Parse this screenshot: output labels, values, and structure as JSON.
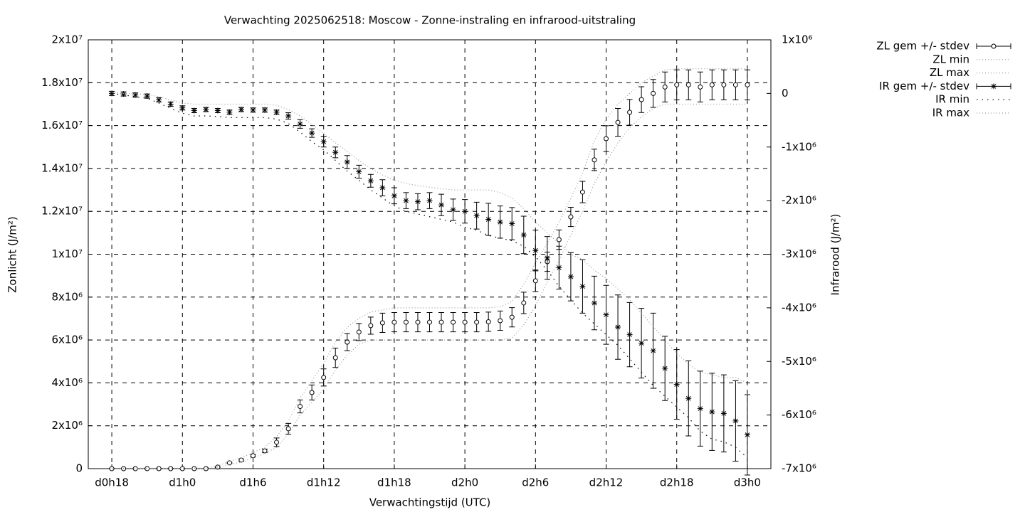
{
  "chart_data": {
    "type": "errorbar-line",
    "title": "Verwachting 2025062518: Moscow - Zonne-instraling en infrarood-uitstraling",
    "xlabel": "Verwachtingstijd (UTC)",
    "ylabel": "Zonlicht (J/m²)",
    "y2label": "Infrarood (J/m²)",
    "grid": true,
    "legend": "outside-top-right",
    "x": [
      0,
      1,
      2,
      3,
      4,
      5,
      6,
      7,
      8,
      9,
      10,
      11,
      12,
      13,
      14,
      15,
      16,
      17,
      18,
      19,
      20,
      21,
      22,
      23,
      24,
      25,
      26,
      27,
      28,
      29,
      30,
      31,
      32,
      33,
      34,
      35,
      36,
      37,
      38,
      39,
      40,
      41,
      42,
      43,
      44,
      45,
      46,
      47,
      48,
      49,
      50,
      51,
      52,
      53,
      54
    ],
    "xlim": [
      -2,
      56
    ],
    "xticks": [
      {
        "value": 0,
        "label": "d0h18"
      },
      {
        "value": 6,
        "label": "d1h0"
      },
      {
        "value": 12,
        "label": "d1h6"
      },
      {
        "value": 18,
        "label": "d1h12"
      },
      {
        "value": 24,
        "label": "d1h18"
      },
      {
        "value": 30,
        "label": "d2h0"
      },
      {
        "value": 36,
        "label": "d2h6"
      },
      {
        "value": 42,
        "label": "d2h12"
      },
      {
        "value": 48,
        "label": "d2h18"
      },
      {
        "value": 54,
        "label": "d3h0"
      }
    ],
    "ylim": [
      0,
      20000000.0
    ],
    "yticks": [
      0,
      {
        "value": 2000000.0,
        "label": "2x10⁶"
      },
      {
        "value": 4000000.0,
        "label": "4x10⁶"
      },
      {
        "value": 6000000.0,
        "label": "6x10⁶"
      },
      {
        "value": 8000000.0,
        "label": "8x10⁶"
      },
      {
        "value": 10000000.0,
        "label": "1x10⁷"
      },
      {
        "value": 12000000.0,
        "label": "1.2x10⁷"
      },
      {
        "value": 14000000.0,
        "label": "1.4x10⁷"
      },
      {
        "value": 16000000.0,
        "label": "1.6x10⁷"
      },
      {
        "value": 18000000.0,
        "label": "1.8x10⁷"
      },
      {
        "value": 20000000.0,
        "label": "2x10⁷"
      }
    ],
    "y2lim": [
      -7000000.0,
      1000000.0
    ],
    "y2ticks": [
      {
        "value": -7000000.0,
        "label": "-7x10⁶"
      },
      {
        "value": -6000000.0,
        "label": "-6x10⁶"
      },
      {
        "value": -5000000.0,
        "label": "-5x10⁶"
      },
      {
        "value": -4000000.0,
        "label": "-4x10⁶"
      },
      {
        "value": -3000000.0,
        "label": "-3x10⁶"
      },
      {
        "value": -2000000.0,
        "label": "-2x10⁶"
      },
      {
        "value": -1000000.0,
        "label": "-1x10⁶"
      },
      0,
      {
        "value": 1000000.0,
        "label": "1x10⁶"
      }
    ],
    "series": [
      {
        "name": "ZL gem +/- stdev",
        "color": "#000000",
        "style": "errorbars",
        "marker": "circle",
        "values": [
          0,
          0,
          0,
          0,
          0,
          0,
          0,
          0,
          0,
          70000.0,
          270000.0,
          400000.0,
          600000.0,
          830000.0,
          1230000.0,
          1860000.0,
          2900000.0,
          3550000.0,
          4250000.0,
          5170000.0,
          5900000.0,
          6370000.0,
          6670000.0,
          6800000.0,
          6830000.0,
          6830000.0,
          6830000.0,
          6830000.0,
          6830000.0,
          6830000.0,
          6830000.0,
          6830000.0,
          6850000.0,
          6900000.0,
          7060000.0,
          7730000.0,
          8760000.0,
          9650000.0,
          10680000.0,
          11740000.0,
          12900000.0,
          14400000.0,
          15390000.0,
          16150000.0,
          16620000.0,
          17210000.0,
          17500000.0,
          17800000.0,
          17900000.0,
          17900000.0,
          17800000.0,
          17900000.0,
          17900000.0,
          17900000.0,
          17900000.0
        ],
        "errors": [
          10000.0,
          10000.0,
          10000.0,
          10000.0,
          10000.0,
          10000.0,
          10000.0,
          10000.0,
          10000.0,
          20000.0,
          30000.0,
          50000.0,
          60000.0,
          80000.0,
          200000.0,
          250000.0,
          300000.0,
          350000.0,
          400000.0,
          450000.0,
          400000.0,
          400000.0,
          400000.0,
          450000.0,
          450000.0,
          450000.0,
          450000.0,
          450000.0,
          450000.0,
          450000.0,
          450000.0,
          450000.0,
          450000.0,
          450000.0,
          450000.0,
          500000.0,
          500000.0,
          450000.0,
          450000.0,
          450000.0,
          500000.0,
          500000.0,
          600000.0,
          650000.0,
          600000.0,
          600000.0,
          650000.0,
          700000.0,
          700000.0,
          700000.0,
          700000.0,
          700000.0,
          700000.0,
          700000.0,
          700000.0
        ]
      },
      {
        "name": "ZL min",
        "color": "#999999",
        "style": "fine-dots",
        "values": [
          0,
          0,
          0,
          0,
          0,
          0,
          0,
          0,
          0,
          30000.0,
          200000.0,
          300000.0,
          500000.0,
          700000.0,
          1000000.0,
          1600000.0,
          2500000.0,
          3100000.0,
          3700000.0,
          4600000.0,
          5300000.0,
          5800000.0,
          6000000.0,
          6000000.0,
          6000000.0,
          6000000.0,
          6000000.0,
          6000000.0,
          6000000.0,
          6000000.0,
          6000000.0,
          6000000.0,
          6000000.0,
          6000000.0,
          6100000.0,
          6700000.0,
          7600000.0,
          8700000.0,
          9700000.0,
          10900000.0,
          12000000.0,
          13300000.0,
          14300000.0,
          15200000.0,
          15900000.0,
          16400000.0,
          16800000.0,
          17000000.0,
          17000000.0,
          17000000.0,
          17000000.0,
          17000000.0,
          17000000.0,
          17000000.0,
          17000000.0
        ]
      },
      {
        "name": "ZL max",
        "color": "#999999",
        "style": "fine-dots",
        "values": [
          20000.0,
          20000.0,
          20000.0,
          20000.0,
          20000.0,
          20000.0,
          20000.0,
          20000.0,
          20000.0,
          120000.0,
          350000.0,
          500000.0,
          750000.0,
          1000000.0,
          1500000.0,
          2200000.0,
          3300000.0,
          4100000.0,
          4900000.0,
          5900000.0,
          6600000.0,
          7000000.0,
          7300000.0,
          7400000.0,
          7500000.0,
          7500000.0,
          7500000.0,
          7500000.0,
          7500000.0,
          7500000.0,
          7500000.0,
          7500000.0,
          7500000.0,
          7550000.0,
          7800000.0,
          8600000.0,
          9600000.0,
          10500000.0,
          11500000.0,
          12600000.0,
          13800000.0,
          15300000.0,
          16300000.0,
          17000000.0,
          17500000.0,
          18000000.0,
          18300000.0,
          18600000.0,
          18650000.0,
          18650000.0,
          18650000.0,
          18650000.0,
          18650000.0,
          18650000.0,
          18650000.0
        ]
      },
      {
        "name": "IR gem +/- stdev",
        "color": "#000000",
        "style": "errorbars",
        "marker": "star",
        "axis": "y2",
        "values": [
          0,
          -10000.0,
          -30000.0,
          -50000.0,
          -120000.0,
          -200000.0,
          -270000.0,
          -320000.0,
          -300000.0,
          -320000.0,
          -350000.0,
          -300000.0,
          -310000.0,
          -310000.0,
          -350000.0,
          -420000.0,
          -570000.0,
          -740000.0,
          -900000.0,
          -1100000.0,
          -1280000.0,
          -1460000.0,
          -1630000.0,
          -1760000.0,
          -1910000.0,
          -2000000.0,
          -2020000.0,
          -2000000.0,
          -2080000.0,
          -2170000.0,
          -2200000.0,
          -2280000.0,
          -2350000.0,
          -2400000.0,
          -2430000.0,
          -2640000.0,
          -2930000.0,
          -3070000.0,
          -3250000.0,
          -3420000.0,
          -3600000.0,
          -3910000.0,
          -4130000.0,
          -4360000.0,
          -4500000.0,
          -4660000.0,
          -4800000.0,
          -5130000.0,
          -5430000.0,
          -5690000.0,
          -5880000.0,
          -5940000.0,
          -5970000.0,
          -6110000.0,
          -6370000.0
        ],
        "errors": [
          40000.0,
          40000.0,
          40000.0,
          40000.0,
          40000.0,
          40000.0,
          40000.0,
          40000.0,
          40000.0,
          40000.0,
          40000.0,
          40000.0,
          40000.0,
          40000.0,
          40000.0,
          60000.0,
          80000.0,
          80000.0,
          100000.0,
          100000.0,
          120000.0,
          120000.0,
          120000.0,
          150000.0,
          150000.0,
          150000.0,
          150000.0,
          150000.0,
          200000.0,
          200000.0,
          220000.0,
          250000.0,
          300000.0,
          300000.0,
          300000.0,
          350000.0,
          380000.0,
          400000.0,
          400000.0,
          450000.0,
          500000.0,
          500000.0,
          550000.0,
          600000.0,
          600000.0,
          650000.0,
          700000.0,
          600000.0,
          650000.0,
          700000.0,
          700000.0,
          720000.0,
          720000.0,
          750000.0,
          750000.0
        ]
      },
      {
        "name": "IR min",
        "color": "#000000",
        "style": "coarse-dots",
        "axis": "y2",
        "values": [
          0,
          -30000.0,
          -60000.0,
          -90000.0,
          -180000.0,
          -280000.0,
          -370000.0,
          -420000.0,
          -420000.0,
          -430000.0,
          -450000.0,
          -450000.0,
          -450000.0,
          -450000.0,
          -480000.0,
          -560000.0,
          -720000.0,
          -900000.0,
          -1050000.0,
          -1250000.0,
          -1450000.0,
          -1620000.0,
          -1800000.0,
          -1950000.0,
          -2100000.0,
          -2200000.0,
          -2250000.0,
          -2300000.0,
          -2350000.0,
          -2400000.0,
          -2500000.0,
          -2550000.0,
          -2650000.0,
          -2700000.0,
          -2750000.0,
          -2850000.0,
          -3050000.0,
          -3300000.0,
          -3600000.0,
          -3850000.0,
          -4100000.0,
          -4300000.0,
          -4500000.0,
          -4700000.0,
          -4950000.0,
          -5200000.0,
          -5450000.0,
          -5650000.0,
          -5850000.0,
          -6050000.0,
          -6300000.0,
          -6450000.0,
          -6500000.0,
          -6600000.0,
          -6800000.0
        ]
      },
      {
        "name": "IR max",
        "color": "#999999",
        "style": "fine-dots",
        "axis": "y2",
        "values": [
          20000.0,
          0,
          -10000.0,
          -20000.0,
          -60000.0,
          -120000.0,
          -180000.0,
          -200000.0,
          -200000.0,
          -200000.0,
          -200000.0,
          -200000.0,
          -200000.0,
          -200000.0,
          -220000.0,
          -300000.0,
          -420000.0,
          -580000.0,
          -750000.0,
          -920000.0,
          -1080000.0,
          -1250000.0,
          -1400000.0,
          -1520000.0,
          -1620000.0,
          -1680000.0,
          -1720000.0,
          -1750000.0,
          -1780000.0,
          -1800000.0,
          -1800000.0,
          -1800000.0,
          -1800000.0,
          -1850000.0,
          -1950000.0,
          -2150000.0,
          -2400000.0,
          -2600000.0,
          -2800000.0,
          -3000000.0,
          -3100000.0,
          -3300000.0,
          -3450000.0,
          -3650000.0,
          -3850000.0,
          -4100000.0,
          -4350000.0,
          -4600000.0,
          -4850000.0,
          -5050000.0,
          -5200000.0,
          -5250000.0,
          -5300000.0,
          -5300000.0,
          -5400000.0
        ]
      }
    ]
  }
}
